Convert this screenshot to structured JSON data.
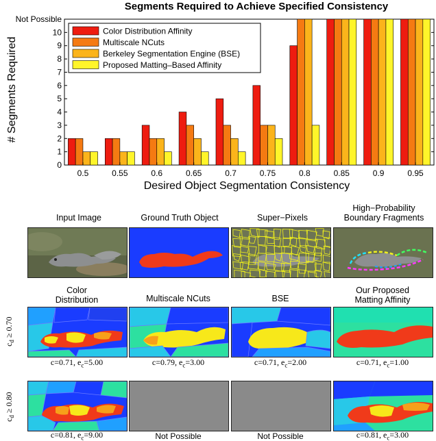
{
  "chart_data": {
    "type": "bar",
    "title": "Segments Required to Achieve Specified Consistency",
    "xlabel": "Desired Object Segmentation Consistency",
    "ylabel": "# Segments Required",
    "categories": [
      "0.5",
      "0.55",
      "0.6",
      "0.65",
      "0.7",
      "0.75",
      "0.8",
      "0.85",
      "0.9",
      "0.95"
    ],
    "ylim": [
      0,
      11
    ],
    "yticks": [
      "0",
      "1",
      "2",
      "3",
      "4",
      "5",
      "6",
      "7",
      "8",
      "9",
      "10",
      "Not Possible"
    ],
    "not_possible_value": 11,
    "legend_position": "top-left",
    "series": [
      {
        "name": "Color Distribution Affinity",
        "color": "#ee1c10",
        "values": [
          2,
          2,
          3,
          4,
          5,
          6,
          9,
          11,
          11,
          11
        ]
      },
      {
        "name": "Multiscale NCuts",
        "color": "#f57a12",
        "values": [
          2,
          2,
          2,
          3,
          3,
          3,
          11,
          11,
          11,
          11
        ]
      },
      {
        "name": "Berkeley Segmentation Engine (BSE)",
        "color": "#fbb41b",
        "values": [
          1,
          1,
          2,
          2,
          2,
          3,
          11,
          11,
          11,
          11
        ]
      },
      {
        "name": "Proposed Matting–Based Affinity",
        "color": "#fff52a",
        "values": [
          1,
          1,
          1,
          1,
          1,
          2,
          3,
          11,
          11,
          11
        ]
      }
    ]
  },
  "figure": {
    "row1_titles": {
      "input": "Input Image",
      "gt": "Ground Truth Object",
      "superpixels": "Super−Pixels",
      "boundary_l1": "High−Probability",
      "boundary_l2": "Boundary Fragments"
    },
    "row2_titles": {
      "color_l1": "Color",
      "color_l2": "Distribution",
      "ncuts": "Multiscale NCuts",
      "bse": "BSE",
      "ours_l1": "Our Proposed",
      "ours_l2": "Matting Affinity"
    },
    "row_labels": {
      "r2_c": "c",
      "r2_sub": "d",
      "r2_rest": " ≥ 0.70",
      "r3_c": "c",
      "r3_sub": "d",
      "r3_rest": " ≥ 0.80"
    },
    "captions": {
      "r2": [
        {
          "c": "c=0.71, e",
          "sub": "c",
          "v": "=5.00"
        },
        {
          "c": "c=0.79, e",
          "sub": "c",
          "v": "=3.00"
        },
        {
          "c": "c=0.71, e",
          "sub": "c",
          "v": "=2.00"
        },
        {
          "c": "c=0.71, e",
          "sub": "c",
          "v": "=1.00"
        }
      ],
      "r3": [
        {
          "c": "c=0.81, e",
          "sub": "c",
          "v": "=9.00"
        },
        {
          "c": "c=0.81, e",
          "sub": "c",
          "v": "=3.00"
        }
      ],
      "not_possible": "Not Possible"
    },
    "colors": {
      "blue": "#1a3cff",
      "red": "#f03a1a",
      "yellow": "#f7e81a",
      "cyan": "#33e0e0",
      "green": "#2de0a0",
      "gray": "#8a8a8a"
    }
  }
}
